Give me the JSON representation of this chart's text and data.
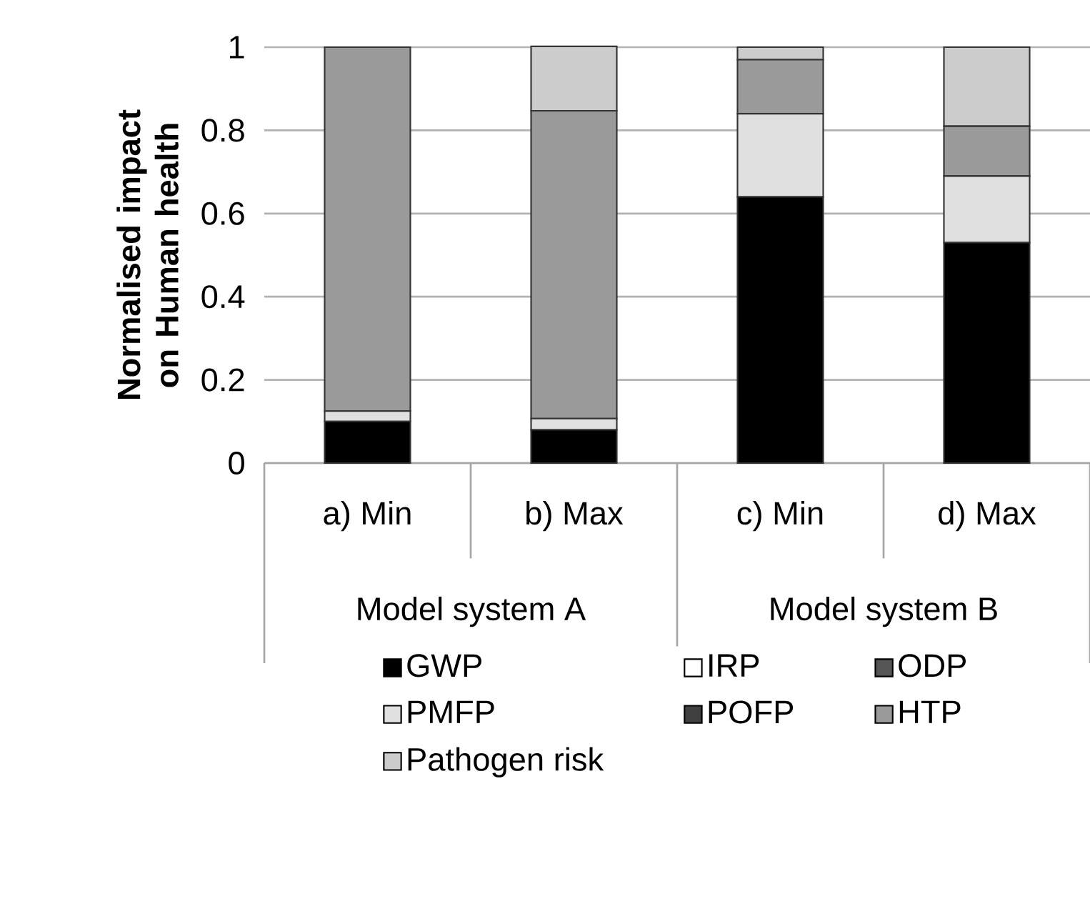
{
  "chart_data": {
    "type": "bar",
    "stacked": true,
    "ylabel": "Normalised impact on Human health",
    "categories": [
      "a) Min",
      "b) Max",
      "c) Min",
      "d) Max"
    ],
    "annotations": [
      "Model system A",
      "Model system B"
    ],
    "series": [
      {
        "name": "GWP",
        "color": "#000000",
        "values": [
          0.1,
          0.08,
          0.64,
          0.53
        ]
      },
      {
        "name": "IRP",
        "color": "#ffffff",
        "values": [
          0,
          0,
          0,
          0
        ]
      },
      {
        "name": "ODP",
        "color": "#555555",
        "values": [
          0,
          0,
          0,
          0
        ]
      },
      {
        "name": "PMFP",
        "color": "#e0e0e0",
        "values": [
          0.025,
          0.027,
          0.2,
          0.16
        ]
      },
      {
        "name": "POFP",
        "color": "#404040",
        "values": [
          0,
          0,
          0,
          0
        ]
      },
      {
        "name": "HTP",
        "color": "#9a9a9a",
        "values": [
          0.875,
          0.74,
          0.13,
          0.12
        ]
      },
      {
        "name": "Pathogen risk",
        "color": "#cccccc",
        "values": [
          0,
          0.155,
          0.03,
          0.19
        ]
      }
    ],
    "ylim": [
      0,
      1
    ],
    "yticks": [
      0,
      0.2,
      0.4,
      0.6,
      0.8,
      1
    ],
    "grid": "y",
    "legend": "bottom"
  }
}
